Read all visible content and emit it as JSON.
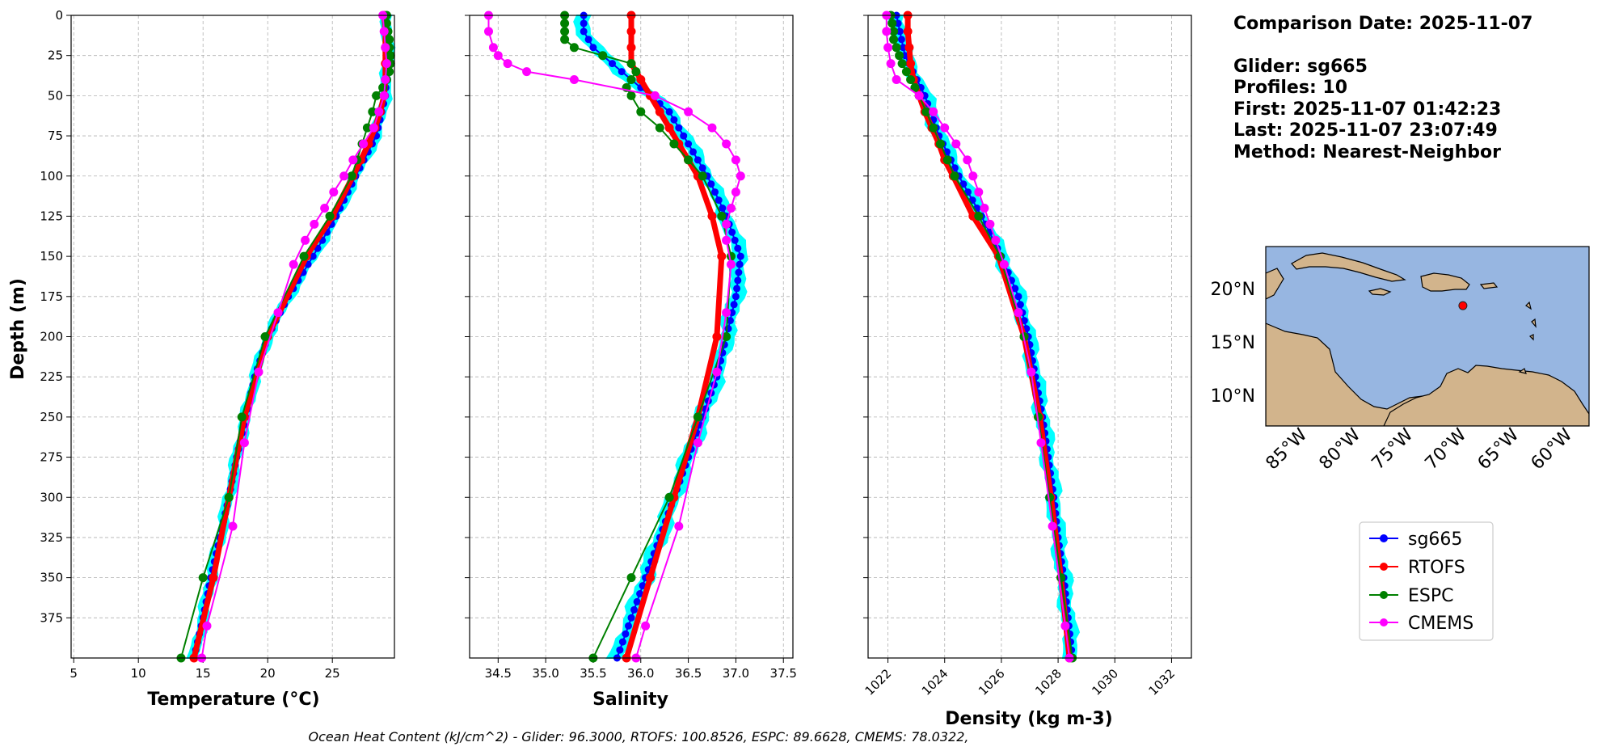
{
  "comparison_title": "Comparison Date: 2025-11-07",
  "glider_info": {
    "glider": "Glider: sg665",
    "profiles": "Profiles: 10",
    "first": "First: 2025-11-07 01:42:23",
    "last": "Last: 2025-11-07 23:07:49",
    "method": "Method: Nearest-Neighbor"
  },
  "footer": "Ocean Heat Content (kJ/cm^2) - Glider: 96.3000,  RTOFS: 100.8526,  ESPC: 89.6628,  CMEMS: 78.0322,",
  "colors": {
    "sg665": "#0000ff",
    "RTOFS": "#ff0000",
    "ESPC": "#008000",
    "CMEMS": "#ff00ff",
    "spread": "#00ffff",
    "ocean": "#97b6e1",
    "land": "#d2b48c"
  },
  "legend": [
    "sg665",
    "RTOFS",
    "ESPC",
    "CMEMS"
  ],
  "map": {
    "lat_labels": [
      "20°N",
      "15°N",
      "10°N"
    ],
    "lon_labels": [
      "85°W",
      "80°W",
      "75°W",
      "70°W",
      "65°W",
      "60°W"
    ],
    "lon_range": [
      -89,
      -58.5
    ],
    "lat_range": [
      7,
      24
    ],
    "glider_position": {
      "lon": -70.4,
      "lat": 18.4
    }
  },
  "chart_data": [
    {
      "type": "line",
      "title": "",
      "xlabel": "Temperature (°C)",
      "ylabel": "Depth (m)",
      "xlim": [
        4.8,
        29.8
      ],
      "ylim": [
        400,
        0
      ],
      "xticks": [
        5,
        10,
        15,
        20,
        25
      ],
      "yticks": [
        0,
        25,
        50,
        75,
        100,
        125,
        150,
        175,
        200,
        225,
        250,
        275,
        300,
        325,
        350,
        375
      ],
      "series": [
        {
          "name": "sg665",
          "depth": [
            0,
            25,
            50,
            75,
            100,
            125,
            150,
            175,
            200,
            225,
            250,
            275,
            300,
            325,
            350,
            375,
            400
          ],
          "values": [
            29.2,
            29.3,
            29.1,
            28.4,
            26.8,
            25.3,
            23.5,
            21.6,
            20.0,
            19.0,
            18.3,
            17.6,
            17.0,
            16.3,
            15.6,
            15.0,
            14.3
          ]
        },
        {
          "name": "RTOFS",
          "depth": [
            0,
            10,
            20,
            30,
            40,
            50,
            60,
            70,
            80,
            90,
            100,
            125,
            150,
            200,
            250,
            300,
            350,
            400
          ],
          "values": [
            29.0,
            29.1,
            29.1,
            29.1,
            29.1,
            29.0,
            28.7,
            28.3,
            27.8,
            27.2,
            26.6,
            25.0,
            23.0,
            20.0,
            18.2,
            17.0,
            15.8,
            14.3
          ]
        },
        {
          "name": "ESPC",
          "depth": [
            0,
            5,
            10,
            15,
            20,
            25,
            30,
            35,
            40,
            45,
            50,
            60,
            70,
            80,
            90,
            100,
            125,
            150,
            200,
            250,
            300,
            350,
            400
          ],
          "values": [
            29.2,
            29.2,
            29.3,
            29.4,
            29.4,
            29.5,
            29.5,
            29.4,
            29.2,
            28.9,
            28.4,
            28.1,
            27.7,
            27.3,
            26.9,
            26.5,
            24.8,
            22.8,
            19.8,
            18.0,
            17.0,
            15.0,
            13.3
          ]
        },
        {
          "name": "CMEMS",
          "depth": [
            0,
            10,
            20,
            30,
            40,
            50,
            60,
            70,
            80,
            90,
            100,
            110,
            120,
            130,
            140,
            155,
            185,
            222,
            266,
            318,
            380,
            400
          ],
          "values": [
            28.9,
            29.0,
            29.1,
            29.2,
            29.1,
            29.0,
            28.6,
            28.2,
            27.4,
            26.6,
            25.9,
            25.1,
            24.4,
            23.6,
            22.9,
            22.0,
            20.8,
            19.3,
            18.2,
            17.3,
            15.3,
            14.9
          ]
        }
      ]
    },
    {
      "type": "line",
      "title": "",
      "xlabel": "Salinity",
      "ylabel": "",
      "xlim": [
        34.2,
        37.6
      ],
      "ylim": [
        400,
        0
      ],
      "xticks": [
        34.5,
        35.0,
        35.5,
        36.0,
        36.5,
        37.0,
        37.5
      ],
      "yticks": [
        0,
        25,
        50,
        75,
        100,
        125,
        150,
        175,
        200,
        225,
        250,
        275,
        300,
        325,
        350,
        375
      ],
      "series": [
        {
          "name": "sg665",
          "depth": [
            0,
            10,
            20,
            30,
            40,
            50,
            60,
            70,
            80,
            90,
            100,
            125,
            150,
            175,
            200,
            225,
            250,
            275,
            300,
            325,
            350,
            375,
            400
          ],
          "values": [
            35.4,
            35.4,
            35.5,
            35.7,
            35.9,
            36.1,
            36.3,
            36.4,
            36.5,
            36.6,
            36.7,
            36.9,
            37.05,
            37.0,
            36.9,
            36.8,
            36.65,
            36.5,
            36.35,
            36.2,
            36.05,
            35.9,
            35.75
          ]
        },
        {
          "name": "RTOFS",
          "depth": [
            0,
            10,
            20,
            30,
            40,
            50,
            60,
            70,
            80,
            90,
            100,
            125,
            150,
            200,
            250,
            300,
            350,
            400
          ],
          "values": [
            35.9,
            35.9,
            35.9,
            35.9,
            36.0,
            36.1,
            36.2,
            36.3,
            36.4,
            36.5,
            36.6,
            36.75,
            36.85,
            36.8,
            36.6,
            36.35,
            36.1,
            35.85
          ]
        },
        {
          "name": "ESPC",
          "depth": [
            0,
            5,
            10,
            15,
            20,
            25,
            30,
            35,
            40,
            45,
            50,
            60,
            70,
            80,
            90,
            100,
            125,
            150,
            200,
            250,
            300,
            350,
            400
          ],
          "values": [
            35.2,
            35.2,
            35.2,
            35.2,
            35.3,
            35.6,
            35.9,
            35.95,
            35.9,
            35.85,
            35.9,
            36.0,
            36.2,
            36.35,
            36.5,
            36.65,
            36.85,
            36.95,
            36.9,
            36.6,
            36.3,
            35.9,
            35.5
          ]
        },
        {
          "name": "CMEMS",
          "depth": [
            0,
            10,
            20,
            25,
            30,
            35,
            40,
            50,
            60,
            70,
            80,
            90,
            100,
            110,
            120,
            130,
            140,
            155,
            185,
            222,
            266,
            318,
            380,
            400
          ],
          "values": [
            34.4,
            34.4,
            34.45,
            34.5,
            34.6,
            34.8,
            35.3,
            36.15,
            36.5,
            36.75,
            36.9,
            37.0,
            37.05,
            37.0,
            36.95,
            36.9,
            36.9,
            36.95,
            36.9,
            36.8,
            36.6,
            36.4,
            36.05,
            35.95
          ]
        }
      ]
    },
    {
      "type": "line",
      "title": "",
      "xlabel": "Density (kg m-3)",
      "ylabel": "",
      "xlim": [
        1021.3,
        1032.7
      ],
      "ylim": [
        400,
        0
      ],
      "xticks": [
        1022,
        1024,
        1026,
        1028,
        1030,
        1032
      ],
      "yticks": [
        0,
        25,
        50,
        75,
        100,
        125,
        150,
        175,
        200,
        225,
        250,
        275,
        300,
        325,
        350,
        375
      ],
      "series": [
        {
          "name": "sg665",
          "depth": [
            0,
            25,
            50,
            75,
            100,
            125,
            150,
            175,
            200,
            225,
            250,
            275,
            300,
            325,
            350,
            375,
            400
          ],
          "values": [
            1022.3,
            1022.6,
            1023.3,
            1023.8,
            1024.5,
            1025.3,
            1026.0,
            1026.6,
            1026.95,
            1027.2,
            1027.45,
            1027.65,
            1027.85,
            1028.0,
            1028.2,
            1028.35,
            1028.5
          ]
        },
        {
          "name": "RTOFS",
          "depth": [
            0,
            10,
            20,
            30,
            40,
            50,
            60,
            70,
            80,
            90,
            100,
            125,
            150,
            200,
            250,
            300,
            350,
            400
          ],
          "values": [
            1022.7,
            1022.7,
            1022.75,
            1022.8,
            1022.9,
            1023.1,
            1023.3,
            1023.55,
            1023.8,
            1024.0,
            1024.3,
            1025.0,
            1025.9,
            1026.8,
            1027.35,
            1027.75,
            1028.1,
            1028.4
          ]
        },
        {
          "name": "ESPC",
          "depth": [
            0,
            5,
            10,
            15,
            20,
            25,
            30,
            35,
            40,
            45,
            50,
            60,
            70,
            80,
            90,
            100,
            125,
            150,
            200,
            250,
            300,
            350,
            400
          ],
          "values": [
            1022.1,
            1022.15,
            1022.2,
            1022.2,
            1022.3,
            1022.4,
            1022.5,
            1022.65,
            1022.8,
            1022.95,
            1023.1,
            1023.35,
            1023.6,
            1023.85,
            1024.1,
            1024.35,
            1025.2,
            1025.95,
            1026.8,
            1027.3,
            1027.7,
            1028.1,
            1028.5
          ]
        },
        {
          "name": "CMEMS",
          "depth": [
            0,
            10,
            20,
            30,
            40,
            50,
            60,
            70,
            80,
            90,
            100,
            110,
            120,
            130,
            140,
            155,
            185,
            222,
            266,
            318,
            380,
            400
          ],
          "values": [
            1021.95,
            1021.95,
            1022.0,
            1022.1,
            1022.3,
            1023.1,
            1023.6,
            1024.0,
            1024.4,
            1024.8,
            1025.0,
            1025.2,
            1025.4,
            1025.6,
            1025.8,
            1026.1,
            1026.6,
            1027.05,
            1027.4,
            1027.8,
            1028.25,
            1028.4
          ]
        }
      ]
    }
  ]
}
